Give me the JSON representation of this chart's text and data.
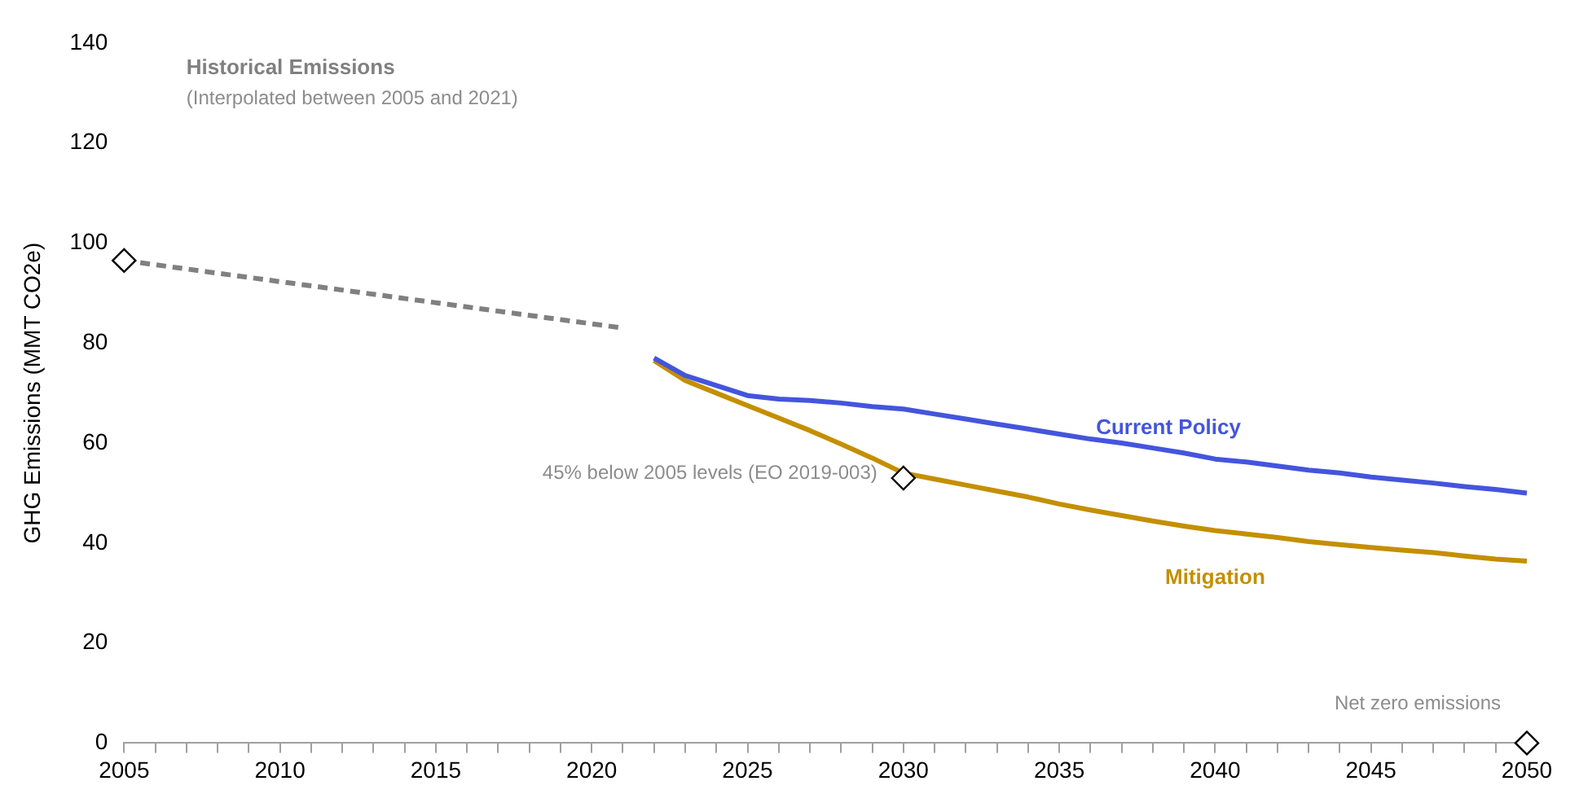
{
  "chart_data": {
    "type": "line",
    "ylabel": "GHG Emissions (MMT CO2e)",
    "xlim": [
      2005,
      2050
    ],
    "xticks": [
      2005,
      {
        "value": 2006,
        "label": null
      },
      {
        "value": 2007,
        "label": null
      },
      {
        "value": 2008,
        "label": null
      },
      {
        "value": 2009,
        "label": null
      },
      2010,
      {
        "value": 2011,
        "label": null
      },
      {
        "value": 2012,
        "label": null
      },
      {
        "value": 2013,
        "label": null
      },
      {
        "value": 2014,
        "label": null
      },
      2015,
      {
        "value": 2016,
        "label": null
      },
      {
        "value": 2017,
        "label": null
      },
      {
        "value": 2018,
        "label": null
      },
      {
        "value": 2019,
        "label": null
      },
      2020,
      {
        "value": 2021,
        "label": null
      },
      {
        "value": 2022,
        "label": null
      },
      {
        "value": 2023,
        "label": null
      },
      {
        "value": 2024,
        "label": null
      },
      2025,
      {
        "value": 2026,
        "label": null
      },
      {
        "value": 2027,
        "label": null
      },
      {
        "value": 2028,
        "label": null
      },
      {
        "value": 2029,
        "label": null
      },
      2030,
      {
        "value": 2031,
        "label": null
      },
      {
        "value": 2032,
        "label": null
      },
      {
        "value": 2033,
        "label": null
      },
      {
        "value": 2034,
        "label": null
      },
      2035,
      {
        "value": 2036,
        "label": null
      },
      {
        "value": 2037,
        "label": null
      },
      {
        "value": 2038,
        "label": null
      },
      {
        "value": 2039,
        "label": null
      },
      2040,
      {
        "value": 2041,
        "label": null
      },
      {
        "value": 2042,
        "label": null
      },
      {
        "value": 2043,
        "label": null
      },
      {
        "value": 2044,
        "label": null
      },
      2045,
      {
        "value": 2046,
        "label": null
      },
      {
        "value": 2047,
        "label": null
      },
      {
        "value": 2048,
        "label": null
      },
      {
        "value": 2049,
        "label": null
      },
      2050
    ],
    "ylim": [
      0,
      140
    ],
    "yticks": [
      0,
      20,
      40,
      60,
      80,
      100,
      120,
      140
    ],
    "grid": false,
    "legend": false,
    "series": [
      {
        "name": "Historical Emissions",
        "color": "#808080",
        "line_style": "dashed",
        "marker": "none",
        "x": [
          2005,
          2021
        ],
        "values": [
          96.5,
          83
        ]
      },
      {
        "name": "Current Policy",
        "color": "#4455dd",
        "marker": "none",
        "x": [
          2022,
          2023,
          2024,
          2025,
          2026,
          2027,
          2028,
          2029,
          2030,
          2031,
          2032,
          2033,
          2034,
          2035,
          2036,
          2037,
          2038,
          2039,
          2040,
          2041,
          2042,
          2043,
          2044,
          2045,
          2046,
          2047,
          2048,
          2049,
          2050
        ],
        "values": [
          77,
          73.5,
          71.5,
          69.5,
          68.8,
          68.5,
          68,
          67.3,
          66.8,
          65.8,
          64.8,
          63.8,
          62.8,
          61.8,
          60.8,
          60,
          59,
          58,
          56.8,
          56.2,
          55.4,
          54.6,
          54,
          53.2,
          52.6,
          52,
          51.3,
          50.7,
          50
        ]
      },
      {
        "name": "Mitigation",
        "color": "#c48f00",
        "marker": "none",
        "x": [
          2022,
          2023,
          2024,
          2025,
          2026,
          2027,
          2028,
          2029,
          2030,
          2031,
          2032,
          2033,
          2034,
          2035,
          2036,
          2037,
          2038,
          2039,
          2040,
          2041,
          2042,
          2043,
          2044,
          2045,
          2046,
          2047,
          2048,
          2049,
          2050
        ],
        "values": [
          76.5,
          72.5,
          70,
          67.5,
          65,
          62.5,
          59.8,
          57,
          54,
          52.8,
          51.6,
          50.4,
          49.2,
          47.8,
          46.6,
          45.5,
          44.4,
          43.4,
          42.5,
          41.8,
          41.1,
          40.3,
          39.7,
          39.1,
          38.6,
          38.1,
          37.4,
          36.8,
          36.4
        ]
      },
      {
        "type": "scatter",
        "color": "#000000",
        "marker": "diamond",
        "x": [
          2005,
          2030,
          2050
        ],
        "values": [
          96.5,
          53,
          0
        ]
      }
    ],
    "annotations": [
      "(Interpolated between 2005 and 2021)",
      {
        "text": "45% below 2005 levels (EO 2019-003)",
        "x": 2030,
        "y": 53
      },
      {
        "text": "Net zero emissions",
        "x": 2050,
        "y": 0
      }
    ]
  }
}
